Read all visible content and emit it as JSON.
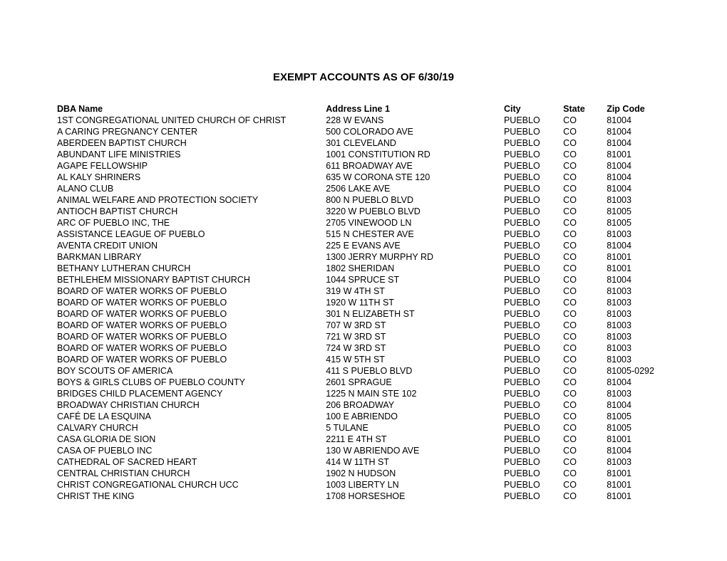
{
  "title": "EXEMPT ACCOUNTS AS OF 6/30/19",
  "columns": [
    "DBA Name",
    "Address Line 1",
    "City",
    "State",
    "Zip Code"
  ],
  "rows": [
    [
      "1ST CONGREGATIONAL UNITED CHURCH OF CHRIST",
      "228 W EVANS",
      "PUEBLO",
      "CO",
      "81004"
    ],
    [
      "A CARING PREGNANCY CENTER",
      "500 COLORADO AVE",
      "PUEBLO",
      "CO",
      "81004"
    ],
    [
      "ABERDEEN BAPTIST CHURCH",
      "301 CLEVELAND",
      "PUEBLO",
      "CO",
      "81004"
    ],
    [
      "ABUNDANT LIFE MINISTRIES",
      "1001 CONSTITUTION RD",
      "PUEBLO",
      "CO",
      "81001"
    ],
    [
      "AGAPE FELLOWSHIP",
      "611 BROADWAY AVE",
      "PUEBLO",
      "CO",
      "81004"
    ],
    [
      "AL KALY SHRINERS",
      "635 W CORONA STE 120",
      "PUEBLO",
      "CO",
      "81004"
    ],
    [
      "ALANO CLUB",
      "2506 LAKE AVE",
      "PUEBLO",
      "CO",
      "81004"
    ],
    [
      "ANIMAL WELFARE AND PROTECTION SOCIETY",
      "800 N PUEBLO BLVD",
      "PUEBLO",
      "CO",
      "81003"
    ],
    [
      "ANTIOCH BAPTIST CHURCH",
      "3220 W PUEBLO BLVD",
      "PUEBLO",
      "CO",
      "81005"
    ],
    [
      "ARC OF PUEBLO INC, THE",
      "2705 VINEWOOD LN",
      "PUEBLO",
      "CO",
      "81005"
    ],
    [
      "ASSISTANCE LEAGUE OF PUEBLO",
      "515 N CHESTER AVE",
      "PUEBLO",
      "CO",
      "81003"
    ],
    [
      "AVENTA CREDIT UNION",
      "225 E EVANS AVE",
      "PUEBLO",
      "CO",
      "81004"
    ],
    [
      "BARKMAN LIBRARY",
      "1300 JERRY MURPHY RD",
      "PUEBLO",
      "CO",
      "81001"
    ],
    [
      "BETHANY LUTHERAN CHURCH",
      "1802 SHERIDAN",
      "PUEBLO",
      "CO",
      "81001"
    ],
    [
      "BETHLEHEM MISSIONARY BAPTIST CHURCH",
      "1044 SPRUCE ST",
      "PUEBLO",
      "CO",
      "81004"
    ],
    [
      "BOARD OF WATER WORKS OF PUEBLO",
      "319 W 4TH ST",
      "PUEBLO",
      "CO",
      "81003"
    ],
    [
      "BOARD OF WATER WORKS OF PUEBLO",
      "1920 W 11TH ST",
      "PUEBLO",
      "CO",
      "81003"
    ],
    [
      "BOARD OF WATER WORKS OF PUEBLO",
      "301 N ELIZABETH ST",
      "PUEBLO",
      "CO",
      "81003"
    ],
    [
      "BOARD OF WATER WORKS OF PUEBLO",
      "707 W 3RD ST",
      "PUEBLO",
      "CO",
      "81003"
    ],
    [
      "BOARD OF WATER WORKS OF PUEBLO",
      "721 W 3RD ST",
      "PUEBLO",
      "CO",
      "81003"
    ],
    [
      "BOARD OF WATER WORKS OF PUEBLO",
      "724 W 3RD ST",
      "PUEBLO",
      "CO",
      "81003"
    ],
    [
      "BOARD OF WATER WORKS OF PUEBLO",
      "415 W 5TH ST",
      "PUEBLO",
      "CO",
      "81003"
    ],
    [
      "BOY SCOUTS OF AMERICA",
      "411 S PUEBLO BLVD",
      "PUEBLO",
      "CO",
      "81005-0292"
    ],
    [
      "BOYS & GIRLS CLUBS OF PUEBLO COUNTY",
      "2601 SPRAGUE",
      "PUEBLO",
      "CO",
      "81004"
    ],
    [
      "BRIDGES CHILD PLACEMENT AGENCY",
      "1225 N MAIN STE 102",
      "PUEBLO",
      "CO",
      "81003"
    ],
    [
      "BROADWAY CHRISTIAN CHURCH",
      "206 BROADWAY",
      "PUEBLO",
      "CO",
      "81004"
    ],
    [
      "CAFÉ DE LA ESQUINA",
      "100 E ABRIENDO",
      "PUEBLO",
      "CO",
      "81005"
    ],
    [
      "CALVARY CHURCH",
      "5 TULANE",
      "PUEBLO",
      "CO",
      "81005"
    ],
    [
      "CASA GLORIA DE SION",
      "2211 E 4TH ST",
      "PUEBLO",
      "CO",
      "81001"
    ],
    [
      "CASA OF PUEBLO INC",
      "130 W ABRIENDO AVE",
      "PUEBLO",
      "CO",
      "81004"
    ],
    [
      "CATHEDRAL OF SACRED HEART",
      "414 W 11TH ST",
      "PUEBLO",
      "CO",
      "81003"
    ],
    [
      "CENTRAL CHRISTIAN CHURCH",
      "1902 N HUDSON",
      "PUEBLO",
      "CO",
      "81001"
    ],
    [
      "CHRIST CONGREGATIONAL CHURCH UCC",
      "1003 LIBERTY LN",
      "PUEBLO",
      "CO",
      "81001"
    ],
    [
      "CHRIST THE KING",
      "1708 HORSESHOE",
      "PUEBLO",
      "CO",
      "81001"
    ]
  ]
}
